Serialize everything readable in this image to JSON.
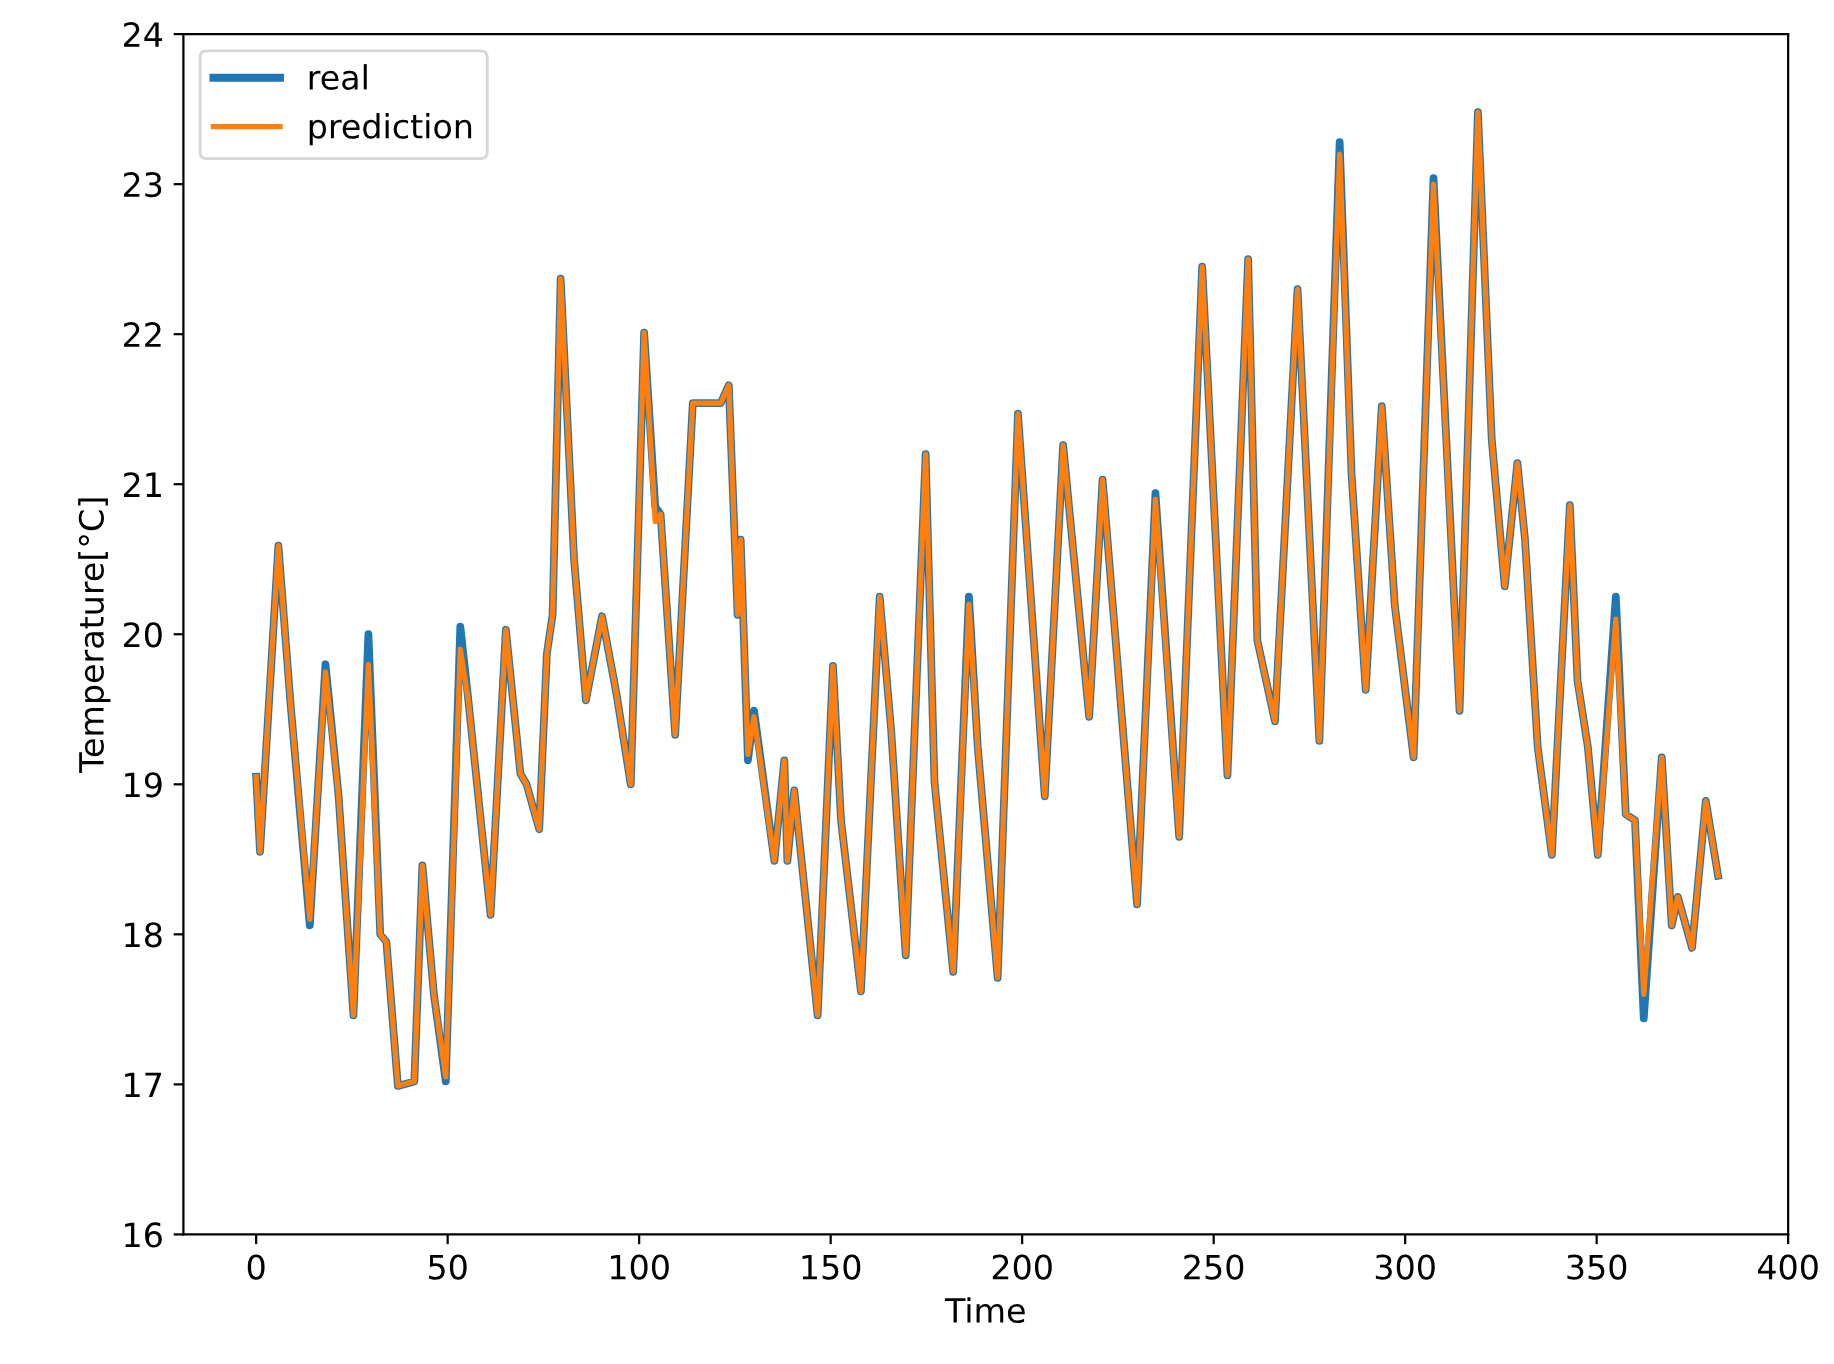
{
  "chart_data": {
    "type": "line",
    "xlabel": "Time",
    "ylabel": "Temperature[°C]",
    "xlim": [
      -19,
      400
    ],
    "xticks": [
      0,
      50,
      100,
      150,
      200,
      250,
      300,
      350,
      400
    ],
    "ylim": [
      16,
      24
    ],
    "yticks": [
      16,
      17,
      18,
      19,
      20,
      21,
      22,
      23,
      24
    ],
    "grid": false,
    "legend": "top left",
    "marker": "none",
    "line_style": "solid",
    "series": [
      {
        "name": "real",
        "color": "#1f77b4",
        "x": [
          0,
          1,
          5.8,
          8.9,
          14,
          18.1,
          21.5,
          25.4,
          29.3,
          32.4,
          34,
          37,
          41.3,
          43.4,
          46.4,
          49.5,
          53.3,
          55.4,
          61.2,
          65.2,
          69,
          70.6,
          73.9,
          75.9,
          77.4,
          79.5,
          83,
          86.1,
          90.3,
          94.1,
          97.8,
          101.3,
          104.2,
          105.6,
          109.4,
          114,
          121.3,
          123.4,
          125.7,
          126.5,
          128.4,
          130,
          135.3,
          137.9,
          138.7,
          140.5,
          146.6,
          150.6,
          152.7,
          157.9,
          162.8,
          165.8,
          169.6,
          174.8,
          177.1,
          182,
          186.1,
          188.4,
          193.6,
          198.9,
          205.9,
          210.7,
          217.5,
          221,
          230,
          234.8,
          241,
          247,
          253.6,
          259,
          261.4,
          266,
          271.9,
          277.6,
          282.9,
          286,
          289.7,
          293.9,
          297.3,
          302.2,
          307.4,
          314.2,
          319,
          322.6,
          326,
          329.3,
          331.3,
          334.6,
          338.3,
          343,
          345,
          347.7,
          350.3,
          355,
          357.6,
          360,
          362.3,
          367,
          369.6,
          371.2,
          374.9,
          378.5,
          381.7
        ],
        "values": [
          19.05,
          18.55,
          20.59,
          19.56,
          18.06,
          19.8,
          18.93,
          17.46,
          20.0,
          18.0,
          17.95,
          16.99,
          17.02,
          18.46,
          17.6,
          17.02,
          20.05,
          19.56,
          18.13,
          20.03,
          19.07,
          19.0,
          18.7,
          19.87,
          20.13,
          22.37,
          20.5,
          19.56,
          20.12,
          19.6,
          19.0,
          22.01,
          20.85,
          20.8,
          19.33,
          21.54,
          21.54,
          21.66,
          20.13,
          20.63,
          19.16,
          19.49,
          18.49,
          19.16,
          18.49,
          18.96,
          17.46,
          19.79,
          18.76,
          17.62,
          20.25,
          19.36,
          17.86,
          21.2,
          19.02,
          17.75,
          20.25,
          19.25,
          17.71,
          21.47,
          18.92,
          21.26,
          19.45,
          21.03,
          18.2,
          20.94,
          18.65,
          22.45,
          19.06,
          22.5,
          19.96,
          19.42,
          22.3,
          19.29,
          23.28,
          21.07,
          19.63,
          21.52,
          20.19,
          19.18,
          23.04,
          19.49,
          23.48,
          21.3,
          20.32,
          21.14,
          20.63,
          19.25,
          18.53,
          20.86,
          19.69,
          19.25,
          18.53,
          20.25,
          18.8,
          18.76,
          17.44,
          19.18,
          18.06,
          18.25,
          17.91,
          18.89,
          18.39
        ]
      },
      {
        "name": "prediction",
        "color": "#ff7f0e",
        "x": [
          0,
          1,
          5.8,
          8.9,
          14,
          18.1,
          21.5,
          25.4,
          29.3,
          32.4,
          34,
          37,
          41.3,
          43.4,
          46.4,
          49.5,
          53.3,
          55.4,
          61.2,
          65.2,
          69,
          70.6,
          73.9,
          75.9,
          77.4,
          79.5,
          83,
          86.1,
          90.3,
          94.1,
          97.8,
          101.3,
          104.2,
          105.6,
          109.4,
          114,
          121.3,
          123.4,
          125.7,
          126.5,
          128.4,
          130,
          135.3,
          137.9,
          138.7,
          140.5,
          146.6,
          150.6,
          152.7,
          157.9,
          162.8,
          165.8,
          169.6,
          174.8,
          177.1,
          182,
          186.1,
          188.4,
          193.6,
          198.9,
          205.9,
          210.7,
          217.5,
          221,
          230,
          234.8,
          241,
          247,
          253.6,
          259,
          261.4,
          266,
          271.9,
          277.6,
          282.9,
          286,
          289.7,
          293.9,
          297.3,
          302.2,
          307.4,
          314.2,
          319,
          322.6,
          326,
          329.3,
          331.3,
          334.6,
          338.3,
          343,
          345,
          347.7,
          350.3,
          355,
          357.6,
          360,
          362.3,
          367,
          369.6,
          371.2,
          374.9,
          378.5,
          381.7
        ],
        "values": [
          19.05,
          18.55,
          20.59,
          19.56,
          18.1,
          19.75,
          18.93,
          17.46,
          19.8,
          18.0,
          17.95,
          16.99,
          17.02,
          18.46,
          17.6,
          17.05,
          19.9,
          19.56,
          18.13,
          20.03,
          19.07,
          19.0,
          18.7,
          19.87,
          20.13,
          22.37,
          20.5,
          19.56,
          20.12,
          19.6,
          19.0,
          22.01,
          20.75,
          20.8,
          19.33,
          21.54,
          21.54,
          21.66,
          20.13,
          20.63,
          19.2,
          19.45,
          18.49,
          19.16,
          18.49,
          18.96,
          17.46,
          19.79,
          18.76,
          17.62,
          20.25,
          19.36,
          17.86,
          21.2,
          19.02,
          17.75,
          20.2,
          19.25,
          17.71,
          21.47,
          18.92,
          21.26,
          19.45,
          21.03,
          18.2,
          20.9,
          18.65,
          22.45,
          19.06,
          22.5,
          19.96,
          19.42,
          22.3,
          19.29,
          23.2,
          21.07,
          19.63,
          21.52,
          20.19,
          19.18,
          23.0,
          19.49,
          23.48,
          21.3,
          20.32,
          21.14,
          20.63,
          19.25,
          18.53,
          20.86,
          19.69,
          19.25,
          18.53,
          20.1,
          18.8,
          18.76,
          17.6,
          19.18,
          18.06,
          18.25,
          17.91,
          18.89,
          18.39
        ]
      }
    ]
  }
}
